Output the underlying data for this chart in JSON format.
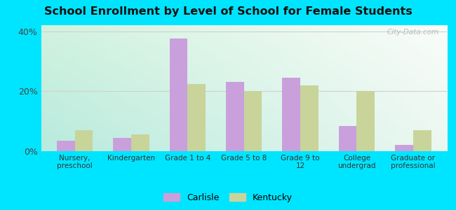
{
  "title": "School Enrollment by Level of School for Female Students",
  "categories": [
    "Nursery,\npreschool",
    "Kindergarten",
    "Grade 1 to 4",
    "Grade 5 to 8",
    "Grade 9 to\n12",
    "College\nundergrad",
    "Graduate or\nprofessional"
  ],
  "carlisle": [
    3.5,
    4.5,
    37.5,
    23.0,
    24.5,
    8.5,
    2.0
  ],
  "kentucky": [
    7.0,
    5.5,
    22.5,
    20.0,
    22.0,
    20.0,
    7.0
  ],
  "carlisle_color": "#c9a0dc",
  "kentucky_color": "#c8d49a",
  "background_outer": "#00e5ff",
  "grid_color": "#d0d0d0",
  "ylim": [
    0,
    42
  ],
  "yticks": [
    0,
    20,
    40
  ],
  "ytick_labels": [
    "0%",
    "20%",
    "40%"
  ],
  "watermark": "City-Data.com",
  "legend_carlisle": "Carlisle",
  "legend_kentucky": "Kentucky",
  "bar_width": 0.32
}
